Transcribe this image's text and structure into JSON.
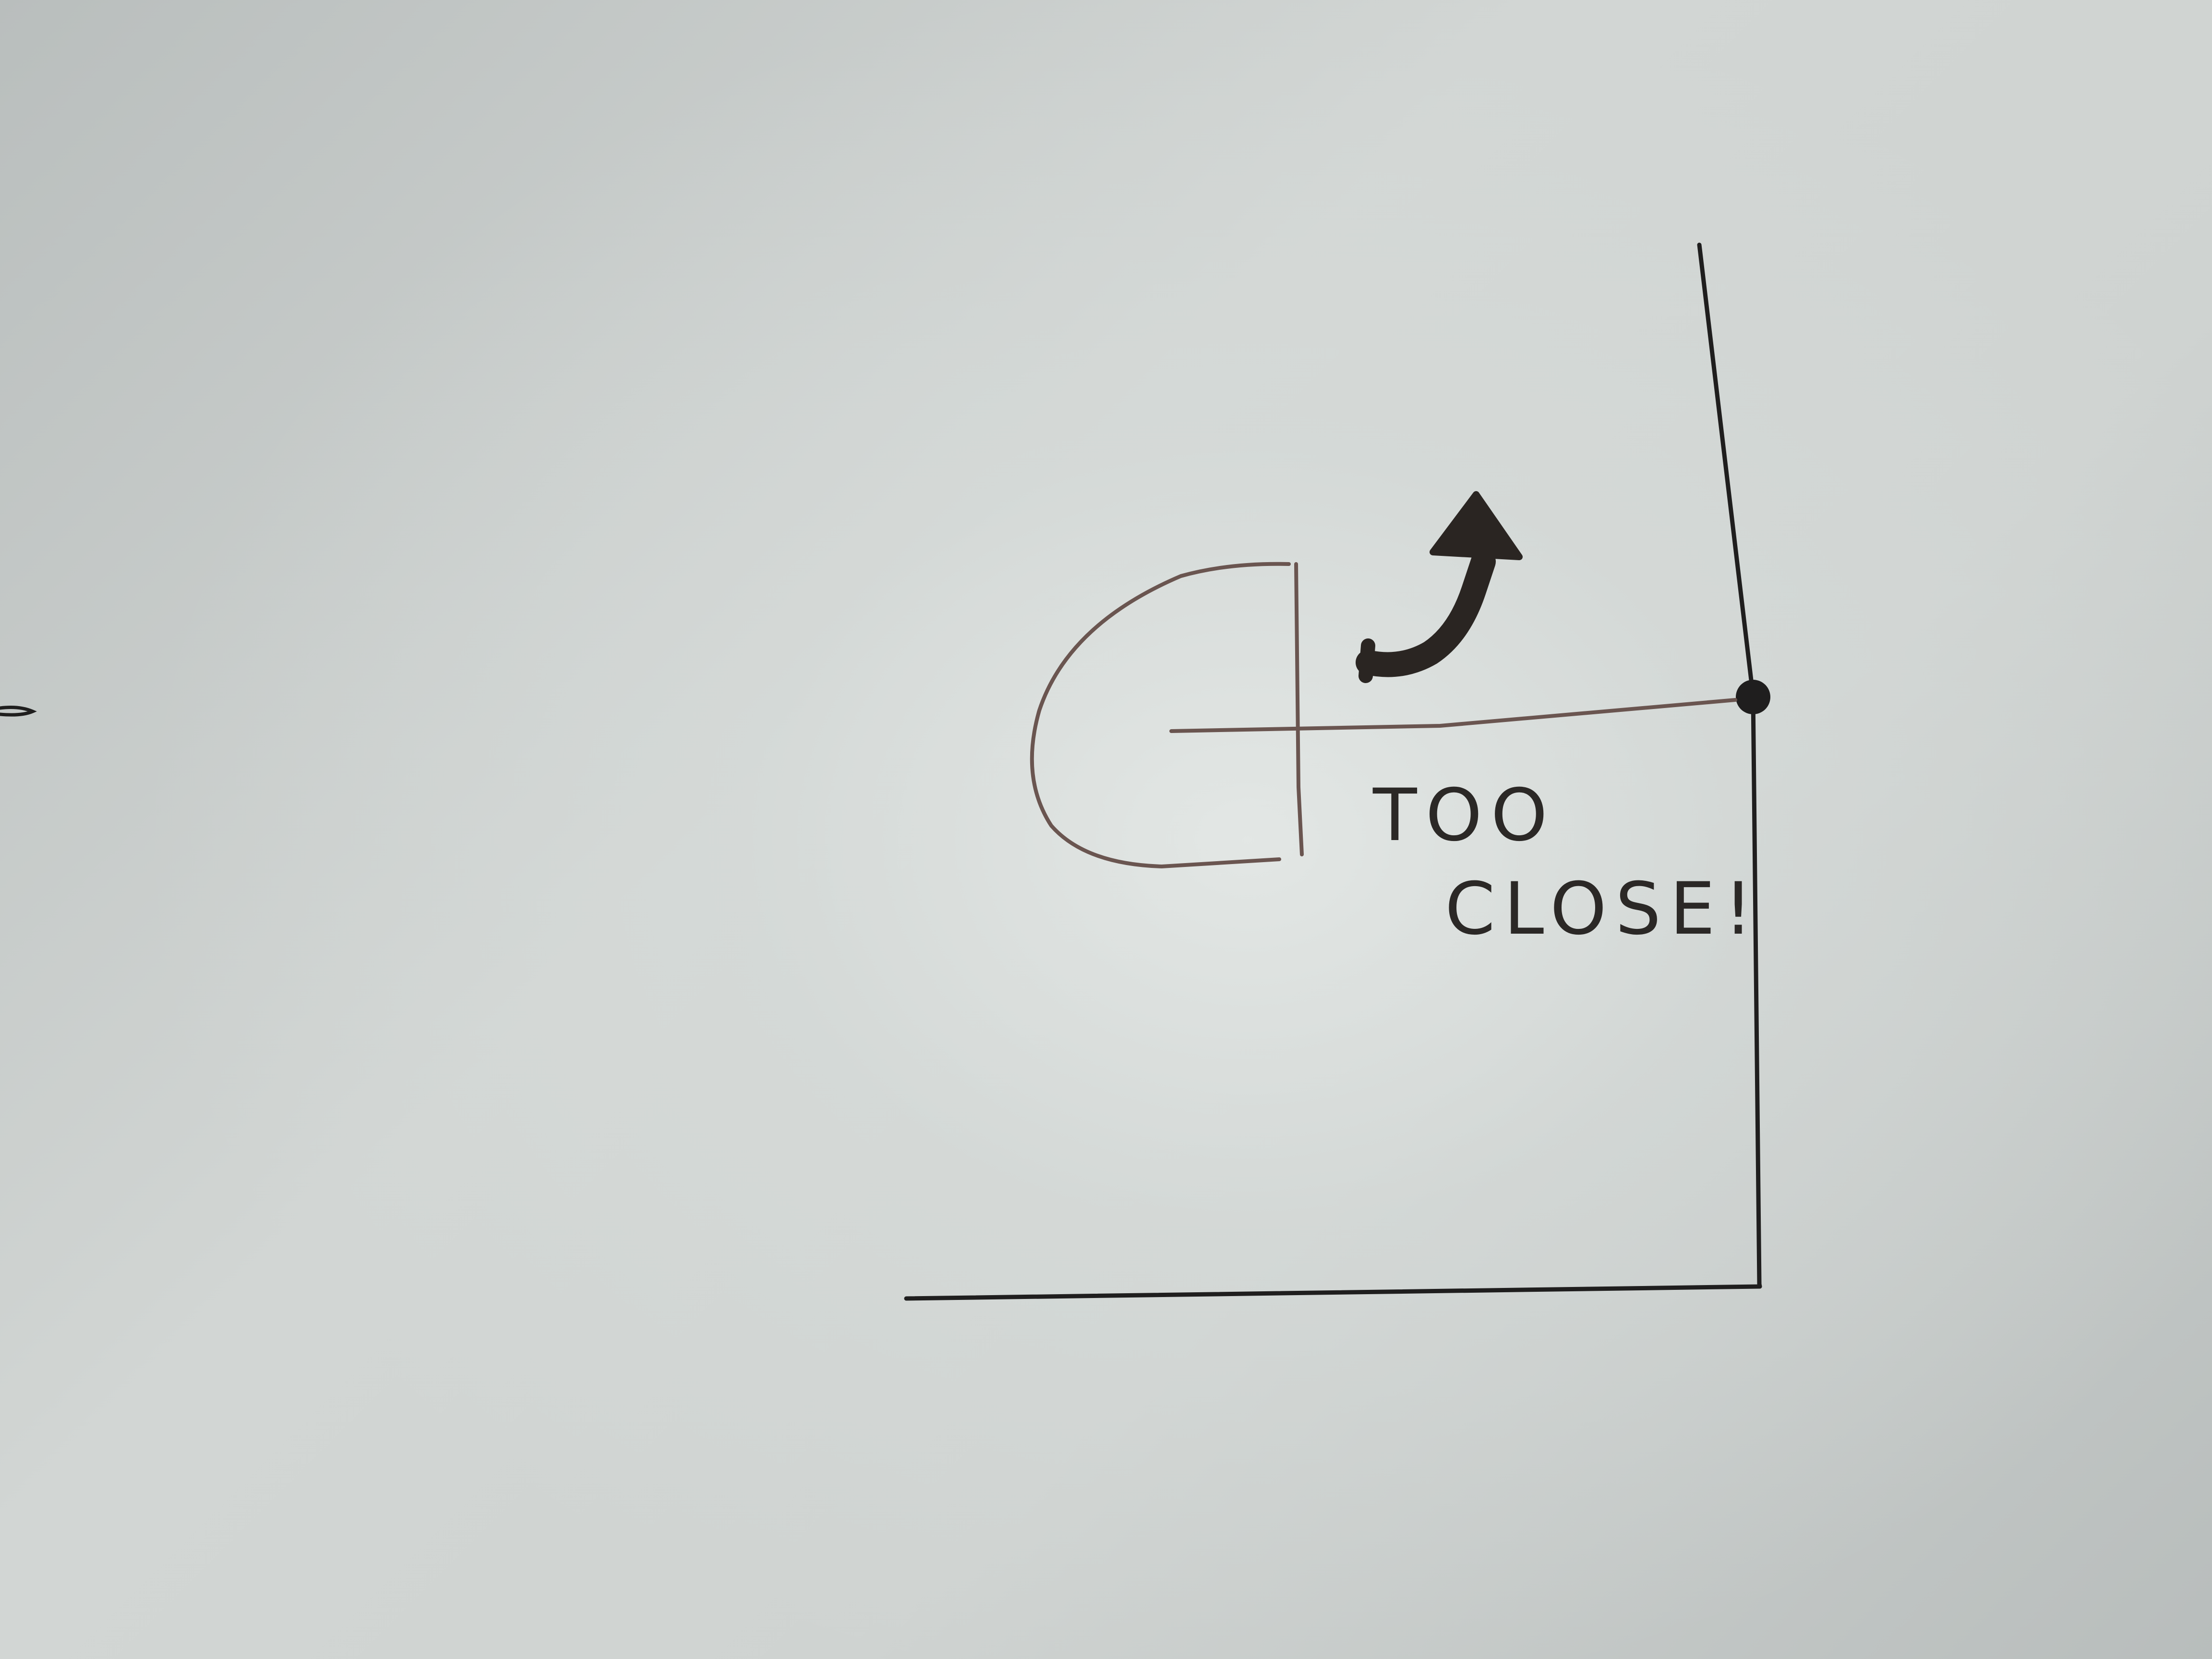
{
  "sketch": {
    "note_line1": "TOO",
    "note_line2": "CLOSE!"
  },
  "colors": {
    "paper": "#cfd3d1",
    "ink": "#1f1e1e",
    "brown_ink": "#6a5550",
    "arrow_ink": "#2a2522"
  }
}
